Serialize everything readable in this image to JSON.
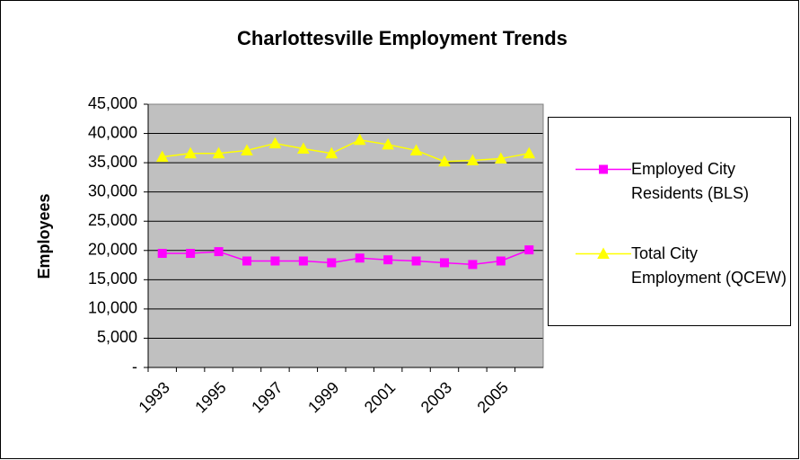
{
  "chart_data": {
    "type": "line",
    "title": "Charlottesville Employment Trends",
    "y_label": "Employees",
    "categories": [
      "1993",
      null,
      "1995",
      null,
      "1997",
      null,
      "1999",
      null,
      "2001",
      null,
      "2003",
      null,
      "2005",
      null
    ],
    "series": [
      {
        "name": "Employed City Residents (BLS)",
        "color": "#ff00ff",
        "marker": "square",
        "values": [
          19500,
          19500,
          19800,
          18200,
          18200,
          18200,
          17900,
          18700,
          18400,
          18200,
          17900,
          17600,
          18200,
          20100
        ]
      },
      {
        "name": "Total City Employment (QCEW)",
        "color": "#ffff00",
        "marker": "triangle",
        "values": [
          36000,
          36600,
          36600,
          37100,
          38300,
          37400,
          36600,
          38900,
          38100,
          37100,
          35200,
          35400,
          35700,
          36600
        ]
      }
    ],
    "ylim": [
      0,
      45000
    ],
    "yticks": [
      {
        "value": 0,
        "label": "-"
      },
      {
        "value": 5000,
        "label": "5,000"
      },
      {
        "value": 10000,
        "label": "10,000"
      },
      {
        "value": 15000,
        "label": "15,000"
      },
      {
        "value": 20000,
        "label": "20,000"
      },
      {
        "value": 25000,
        "label": "25,000"
      },
      {
        "value": 30000,
        "label": "30,000"
      },
      {
        "value": 35000,
        "label": "35,000"
      },
      {
        "value": 40000,
        "label": "40,000"
      },
      {
        "value": 45000,
        "label": "45,000"
      }
    ],
    "grid": true,
    "legend": "right",
    "plot_background": "#c0c0c0"
  }
}
